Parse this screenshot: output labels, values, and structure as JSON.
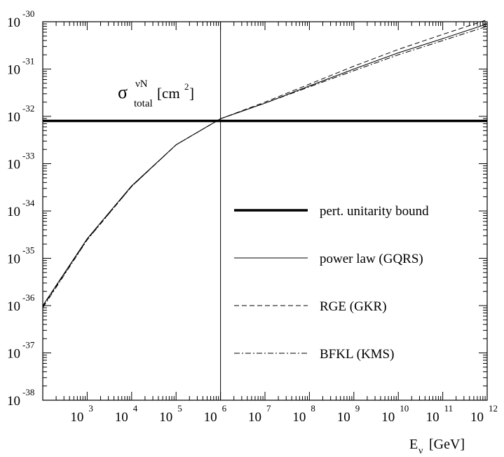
{
  "chart_data": {
    "type": "line",
    "title_main": "σ",
    "title_sup": "νN",
    "title_sub": "total",
    "title_unit_pre": "[cm",
    "title_unit_sup": "2",
    "title_unit_post": "]",
    "xlabel_main": "E",
    "xlabel_sub": "ν",
    "xlabel_unit": "[GeV]",
    "x_scale": "log",
    "y_scale": "log",
    "xlim": [
      100,
      1000000000000
    ],
    "ylim": [
      1e-38,
      1e-30
    ],
    "x_ticks": [
      {
        "base": "10",
        "exp": "3",
        "value": 1000
      },
      {
        "base": "10",
        "exp": "4",
        "value": 10000
      },
      {
        "base": "10",
        "exp": "5",
        "value": 100000
      },
      {
        "base": "10",
        "exp": "6",
        "value": 1000000
      },
      {
        "base": "10",
        "exp": "7",
        "value": 10000000
      },
      {
        "base": "10",
        "exp": "8",
        "value": 100000000
      },
      {
        "base": "10",
        "exp": "9",
        "value": 1000000000
      },
      {
        "base": "10",
        "exp": "10",
        "value": 10000000000
      },
      {
        "base": "10",
        "exp": "11",
        "value": 100000000000
      },
      {
        "base": "10",
        "exp": "12",
        "value": 1000000000000
      }
    ],
    "y_ticks": [
      {
        "base": "10",
        "exp": "-30",
        "value": 1e-30
      },
      {
        "base": "10",
        "exp": "-31",
        "value": 1e-31
      },
      {
        "base": "10",
        "exp": "-32",
        "value": 1e-32
      },
      {
        "base": "10",
        "exp": "-33",
        "value": 1e-33
      },
      {
        "base": "10",
        "exp": "-34",
        "value": 1e-34
      },
      {
        "base": "10",
        "exp": "-35",
        "value": 1e-35
      },
      {
        "base": "10",
        "exp": "-36",
        "value": 1e-36
      },
      {
        "base": "10",
        "exp": "-37",
        "value": 1e-37
      },
      {
        "base": "10",
        "exp": "-38",
        "value": 1e-38
      }
    ],
    "vertical_line_x": 1000000,
    "legend_position": "lower-right",
    "series": [
      {
        "name": "pert. unitarity bound",
        "style": "thick",
        "x": [
          100,
          1000000000000
        ],
        "y": [
          8e-33,
          8e-33
        ]
      },
      {
        "name": "power law (GQRS)",
        "style": "solid",
        "x": [
          100,
          1000,
          10000,
          100000,
          1000000,
          10000000,
          100000000,
          1000000000,
          10000000000,
          100000000000,
          1000000000000
        ],
        "y": [
          1e-36,
          2.6e-35,
          3.4e-34,
          2.5e-33,
          8.9e-33,
          1.9e-32,
          4.4e-32,
          1e-31,
          2.2e-31,
          4.4e-31,
          9e-31
        ]
      },
      {
        "name": "RGE (GKR)",
        "style": "dashed",
        "x": [
          100,
          1000,
          10000,
          100000,
          1000000,
          10000000,
          100000000,
          1000000000,
          10000000000,
          100000000000,
          1000000000000
        ],
        "y": [
          9.5e-37,
          2.5e-35,
          3.3e-34,
          2.5e-33,
          8.9e-33,
          2e-32,
          4.8e-32,
          1.15e-31,
          2.6e-31,
          5.4e-31,
          1.1e-30
        ]
      },
      {
        "name": "BFKL (KMS)",
        "style": "dashdot",
        "x": [
          100,
          1000,
          10000,
          100000,
          1000000,
          10000000,
          100000000,
          1000000000,
          10000000000,
          100000000000,
          1000000000000
        ],
        "y": [
          9e-37,
          2.45e-35,
          3.3e-34,
          2.5e-33,
          8.9e-33,
          1.9e-32,
          4.2e-32,
          9.2e-32,
          2e-31,
          4e-31,
          8e-31
        ]
      }
    ]
  }
}
